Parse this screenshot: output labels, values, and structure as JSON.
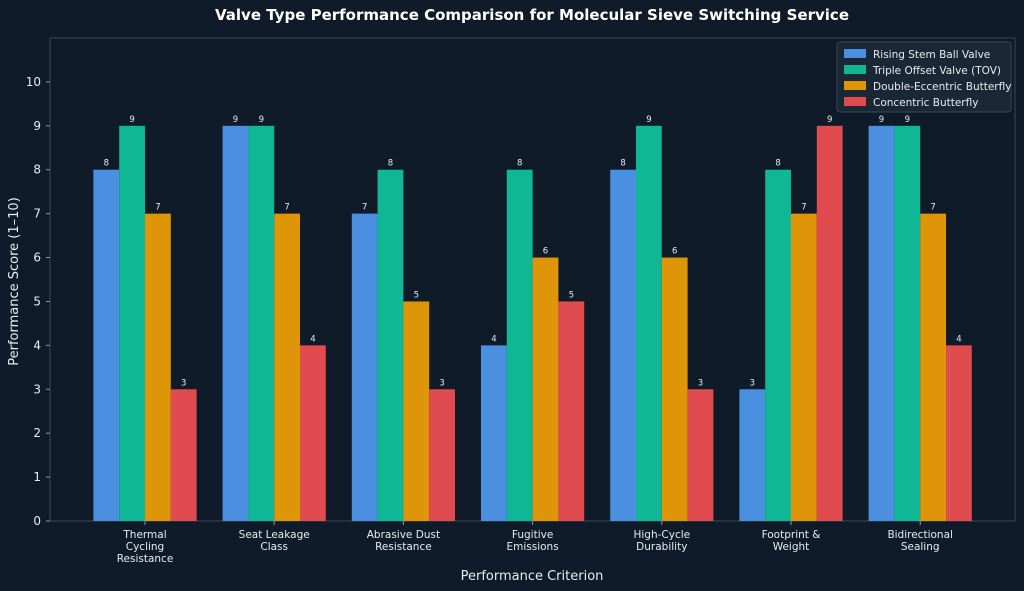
{
  "chart_data": {
    "type": "bar",
    "title": "Valve Type Performance Comparison for Molecular Sieve Switching Service",
    "xlabel": "Performance Criterion",
    "ylabel": "Performance Score (1–10)",
    "ylim": [
      0,
      11
    ],
    "yticks": [
      0,
      1,
      2,
      3,
      4,
      5,
      6,
      7,
      8,
      9,
      10
    ],
    "grid": false,
    "legend_position": "top-right",
    "categories": [
      [
        "Thermal",
        "Cycling",
        "Resistance"
      ],
      [
        "Seat Leakage",
        "Class"
      ],
      [
        "Abrasive Dust",
        "Resistance"
      ],
      [
        "Fugitive",
        "Emissions"
      ],
      [
        "High-Cycle",
        "Durability"
      ],
      [
        "Footprint &",
        "Weight"
      ],
      [
        "Bidirectional",
        "Sealing"
      ]
    ],
    "series": [
      {
        "name": "Rising Stem Ball Valve",
        "color": "#4a8fe0",
        "values": [
          8,
          9,
          7,
          4,
          8,
          3,
          9
        ]
      },
      {
        "name": "Triple Offset Valve (TOV)",
        "color": "#10b795",
        "values": [
          9,
          9,
          8,
          8,
          9,
          8,
          9
        ]
      },
      {
        "name": "Double-Eccentric Butterfly",
        "color": "#de9608",
        "values": [
          7,
          7,
          5,
          6,
          6,
          7,
          7
        ]
      },
      {
        "name": "Concentric Butterfly",
        "color": "#e04b4f",
        "values": [
          3,
          4,
          3,
          5,
          3,
          9,
          4
        ]
      }
    ]
  }
}
